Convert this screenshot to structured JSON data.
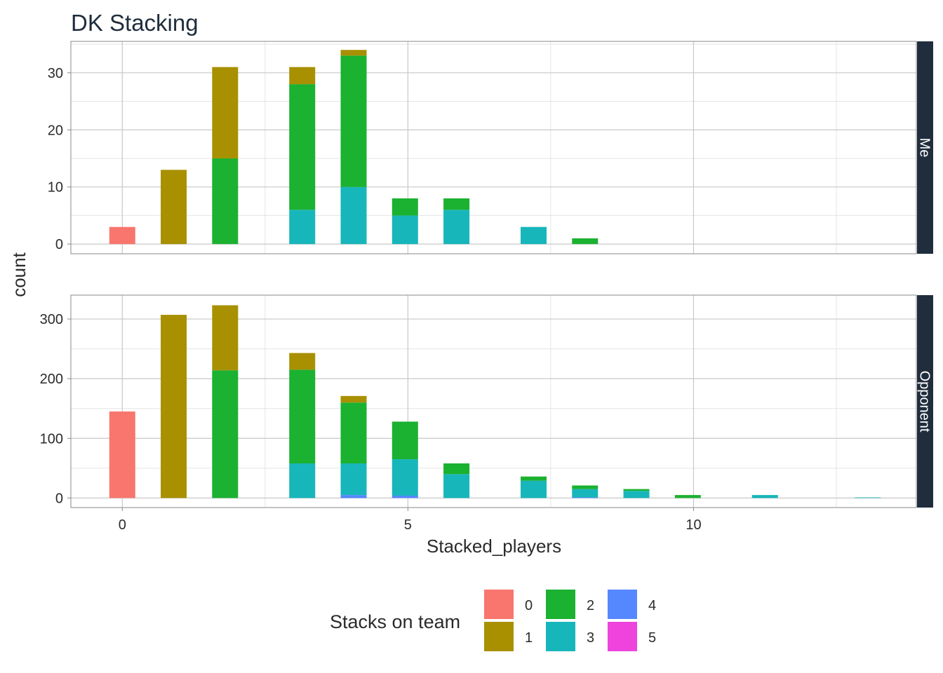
{
  "chart_data": {
    "type": "bar",
    "stacked": true,
    "title": "DK Stacking",
    "xlabel": "Stacked_players",
    "ylabel": "count",
    "x_ticks": [
      0,
      5,
      10
    ],
    "xlim": [
      -0.9,
      13.9
    ],
    "legend": {
      "title": "Stacks on team",
      "position": "bottom",
      "entries": [
        {
          "label": "0",
          "color": "#F8766D"
        },
        {
          "label": "1",
          "color": "#A89000"
        },
        {
          "label": "2",
          "color": "#1BB131"
        },
        {
          "label": "3",
          "color": "#17B6BA"
        },
        {
          "label": "4",
          "color": "#5588FF"
        },
        {
          "label": "5",
          "color": "#EE44DD"
        }
      ]
    },
    "panels": [
      {
        "name": "Me",
        "ylim": [
          -1.7,
          35.5
        ],
        "y_ticks": [
          0,
          10,
          20,
          30
        ],
        "y_minor": [
          5,
          15,
          25,
          35
        ],
        "bars": [
          {
            "x": 0,
            "segments": [
              {
                "stack": "0",
                "value": 3
              }
            ]
          },
          {
            "x": 0.9,
            "segments": [
              {
                "stack": "1",
                "value": 13
              }
            ]
          },
          {
            "x": 1.8,
            "segments": [
              {
                "stack": "2",
                "value": 15
              },
              {
                "stack": "1",
                "value": 16
              }
            ]
          },
          {
            "x": 3.15,
            "segments": [
              {
                "stack": "3",
                "value": 6
              },
              {
                "stack": "2",
                "value": 22
              },
              {
                "stack": "1",
                "value": 3
              }
            ]
          },
          {
            "x": 4.05,
            "segments": [
              {
                "stack": "3",
                "value": 10
              },
              {
                "stack": "2",
                "value": 23
              },
              {
                "stack": "1",
                "value": 1
              }
            ]
          },
          {
            "x": 4.95,
            "segments": [
              {
                "stack": "3",
                "value": 5
              },
              {
                "stack": "2",
                "value": 3
              }
            ]
          },
          {
            "x": 5.85,
            "segments": [
              {
                "stack": "3",
                "value": 6
              },
              {
                "stack": "2",
                "value": 2
              }
            ]
          },
          {
            "x": 7.2,
            "segments": [
              {
                "stack": "3",
                "value": 3
              }
            ]
          },
          {
            "x": 8.1,
            "segments": [
              {
                "stack": "2",
                "value": 1
              }
            ]
          }
        ]
      },
      {
        "name": "Opponent",
        "ylim": [
          -16,
          340
        ],
        "y_ticks": [
          0,
          100,
          200,
          300
        ],
        "y_minor": [
          50,
          150,
          250
        ],
        "bars": [
          {
            "x": 0,
            "segments": [
              {
                "stack": "0",
                "value": 145
              }
            ]
          },
          {
            "x": 0.9,
            "segments": [
              {
                "stack": "1",
                "value": 307
              }
            ]
          },
          {
            "x": 1.8,
            "segments": [
              {
                "stack": "2",
                "value": 214
              },
              {
                "stack": "1",
                "value": 109
              }
            ]
          },
          {
            "x": 3.15,
            "segments": [
              {
                "stack": "3",
                "value": 58
              },
              {
                "stack": "2",
                "value": 157
              },
              {
                "stack": "1",
                "value": 28
              }
            ]
          },
          {
            "x": 4.05,
            "segments": [
              {
                "stack": "4",
                "value": 5
              },
              {
                "stack": "3",
                "value": 53
              },
              {
                "stack": "2",
                "value": 102
              },
              {
                "stack": "1",
                "value": 11
              }
            ]
          },
          {
            "x": 4.95,
            "segments": [
              {
                "stack": "4",
                "value": 4
              },
              {
                "stack": "3",
                "value": 61
              },
              {
                "stack": "2",
                "value": 63
              }
            ]
          },
          {
            "x": 5.85,
            "segments": [
              {
                "stack": "3",
                "value": 40
              },
              {
                "stack": "2",
                "value": 18
              }
            ]
          },
          {
            "x": 7.2,
            "segments": [
              {
                "stack": "3",
                "value": 29
              },
              {
                "stack": "2",
                "value": 7
              }
            ]
          },
          {
            "x": 8.1,
            "segments": [
              {
                "stack": "4",
                "value": 1
              },
              {
                "stack": "3",
                "value": 14
              },
              {
                "stack": "2",
                "value": 6
              }
            ]
          },
          {
            "x": 9.0,
            "segments": [
              {
                "stack": "3",
                "value": 12
              },
              {
                "stack": "2",
                "value": 3
              }
            ]
          },
          {
            "x": 9.9,
            "segments": [
              {
                "stack": "2",
                "value": 5
              }
            ]
          },
          {
            "x": 11.25,
            "segments": [
              {
                "stack": "3",
                "value": 5
              }
            ]
          },
          {
            "x": 13.05,
            "segments": [
              {
                "stack": "3",
                "value": 1
              }
            ]
          }
        ]
      }
    ]
  }
}
